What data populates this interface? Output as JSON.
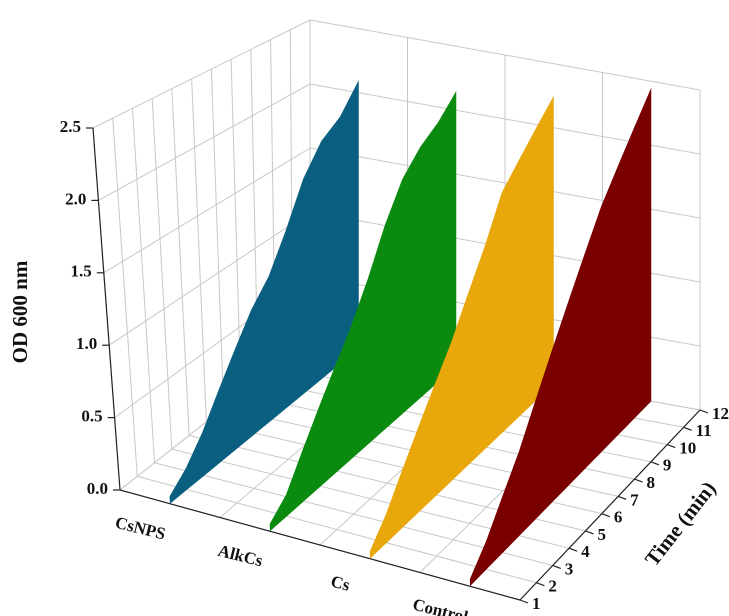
{
  "chart_data": {
    "type": "ribbon3d",
    "y_label": "OD 600 nm",
    "x_label": "Time (min)",
    "x": [
      1,
      2,
      3,
      4,
      5,
      6,
      7,
      8,
      9,
      10,
      11,
      12
    ],
    "xlim": [
      1,
      12
    ],
    "ylim": [
      0,
      2.5
    ],
    "yticks": [
      {
        "value": 0,
        "label": "0.0"
      },
      {
        "value": 0.5,
        "label": "0.5"
      },
      {
        "value": 1,
        "label": "1.0"
      },
      {
        "value": 1.5,
        "label": "1.5"
      },
      {
        "value": 2,
        "label": "2.0"
      },
      {
        "value": 2.5,
        "label": "2.5"
      }
    ],
    "grid": true,
    "series": [
      {
        "name": "CsNPS",
        "color": "#0a5f80",
        "values": [
          0.05,
          0.15,
          0.3,
          0.5,
          0.7,
          0.9,
          1.05,
          1.3,
          1.6,
          1.8,
          1.9,
          2.1
        ]
      },
      {
        "name": "AlkCs",
        "color": "#0a8a0e",
        "values": [
          0.05,
          0.15,
          0.35,
          0.55,
          0.75,
          0.95,
          1.2,
          1.5,
          1.75,
          1.9,
          2.0,
          2.15
        ]
      },
      {
        "name": "Cs",
        "color": "#e8a70a",
        "values": [
          0.05,
          0.2,
          0.4,
          0.6,
          0.8,
          1.0,
          1.25,
          1.5,
          1.8,
          1.95,
          2.1,
          2.25
        ]
      },
      {
        "name": "Control",
        "color": "#7a0000",
        "values": [
          0.05,
          0.2,
          0.4,
          0.6,
          0.85,
          1.1,
          1.35,
          1.6,
          1.85,
          2.05,
          2.25,
          2.45
        ]
      }
    ]
  }
}
